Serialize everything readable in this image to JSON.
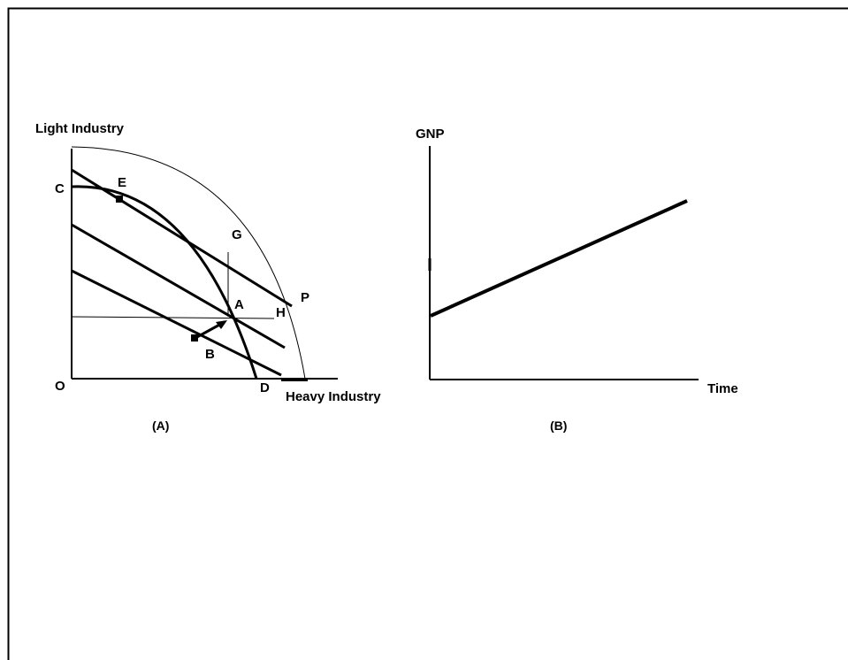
{
  "panel_a": {
    "y_axis_label": "Light Industry",
    "x_axis_label": "Heavy Industry",
    "origin_label": "O",
    "points": {
      "c": "C",
      "e": "E",
      "g": "G",
      "p": "P",
      "a": "A",
      "h": "H",
      "b": "B",
      "d": "D"
    },
    "caption": "(A)"
  },
  "panel_b": {
    "y_axis_label": "GNP",
    "x_axis_label": "Time",
    "caption": "(B)"
  }
}
